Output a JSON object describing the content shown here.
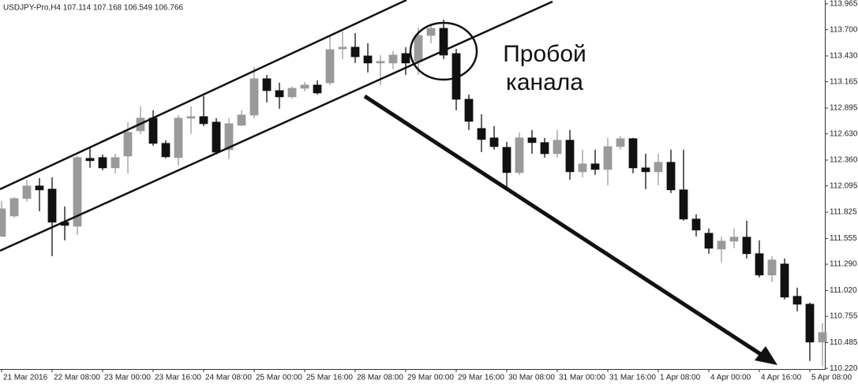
{
  "chart_data": {
    "type": "candlestick",
    "header": "USDJPY-Pro,H4  107.114 107.168 106.549 106.766",
    "annotation": [
      "Пробой",
      "канала"
    ],
    "up_color": "#9a9a9a",
    "down_color": "#111111",
    "categories": [
      "21 Mar 2016",
      null,
      null,
      null,
      "22 Mar 08:00",
      null,
      null,
      null,
      "23 Mar 00:00",
      null,
      null,
      null,
      "23 Mar 16:00",
      null,
      null,
      null,
      "24 Mar 08:00",
      null,
      null,
      null,
      "25 Mar 00:00",
      null,
      null,
      null,
      "25 Mar 16:00",
      null,
      null,
      null,
      "28 Mar 08:00",
      null,
      null,
      null,
      "29 Mar 00:00",
      null,
      null,
      null,
      "29 Mar 16:00",
      null,
      null,
      null,
      "30 Mar 08:00",
      null,
      null,
      null,
      "31 Mar 00:00",
      null,
      null,
      null,
      "31 Mar 16:00",
      null,
      null,
      null,
      "1 Apr 08:00",
      null,
      null,
      null,
      "4 Apr 00:00",
      null,
      null,
      null,
      "4 Apr 16:00",
      null,
      null,
      null,
      "5 Apr 08:00",
      null
    ],
    "open": [
      111.576,
      111.786,
      111.965,
      112.094,
      112.062,
      111.722,
      111.681,
      112.378,
      112.386,
      112.28,
      112.402,
      112.661,
      112.791,
      112.532,
      112.386,
      112.791,
      112.807,
      112.75,
      112.467,
      112.718,
      112.823,
      113.196,
      113.074,
      113.01,
      113.098,
      113.131,
      113.155,
      113.503,
      113.52,
      113.43,
      113.358,
      113.358,
      113.455,
      113.374,
      113.641,
      113.714,
      113.455,
      112.985,
      112.685,
      112.588,
      112.491,
      112.232,
      112.588,
      112.54,
      112.426,
      112.564,
      112.24,
      112.321,
      112.264,
      112.499,
      112.58,
      112.28,
      112.24,
      112.337,
      112.054,
      111.754,
      111.608,
      111.446,
      111.527,
      111.568,
      111.398,
      111.179,
      111.292,
      110.96,
      110.879,
      110.49
    ],
    "high": [
      111.94,
      111.981,
      112.159,
      112.175,
      112.183,
      111.884,
      112.402,
      112.483,
      112.418,
      112.426,
      112.75,
      112.912,
      112.872,
      112.564,
      112.823,
      112.912,
      113.018,
      112.791,
      112.791,
      112.872,
      113.317,
      113.236,
      113.155,
      113.115,
      113.163,
      113.179,
      113.641,
      113.682,
      113.665,
      113.56,
      113.439,
      113.479,
      113.52,
      113.722,
      113.763,
      113.803,
      113.503,
      113.034,
      112.831,
      112.71,
      112.548,
      112.645,
      112.669,
      112.588,
      112.669,
      112.669,
      112.467,
      112.467,
      112.588,
      112.604,
      112.588,
      112.426,
      112.426,
      112.467,
      112.467,
      111.803,
      111.657,
      111.576,
      111.657,
      111.738,
      111.535,
      111.373,
      111.349,
      111.049,
      110.896,
      110.685
    ],
    "low": [
      111.576,
      111.77,
      111.932,
      111.835,
      111.373,
      111.535,
      111.592,
      112.28,
      112.256,
      112.224,
      112.224,
      112.629,
      112.507,
      112.378,
      112.305,
      112.629,
      112.71,
      112.418,
      112.37,
      112.71,
      112.791,
      112.953,
      112.888,
      112.993,
      113.066,
      113.034,
      113.131,
      113.398,
      113.358,
      113.26,
      113.131,
      113.293,
      113.236,
      113.236,
      113.56,
      113.398,
      112.872,
      112.669,
      112.442,
      112.467,
      112.062,
      112.208,
      112.426,
      112.386,
      112.386,
      112.159,
      112.183,
      112.208,
      112.102,
      112.467,
      112.224,
      112.062,
      112.102,
      112.021,
      111.738,
      111.576,
      111.398,
      111.309,
      111.454,
      111.349,
      111.155,
      111.106,
      110.928,
      110.806,
      110.296,
      110.239
    ],
    "close": [
      111.859,
      111.965,
      112.094,
      112.054,
      111.722,
      111.689,
      112.386,
      112.354,
      112.28,
      112.386,
      112.645,
      112.791,
      112.532,
      112.394,
      112.791,
      112.807,
      112.734,
      112.442,
      112.734,
      112.823,
      113.196,
      113.074,
      113.01,
      113.098,
      113.131,
      113.05,
      113.495,
      113.52,
      113.422,
      113.358,
      113.374,
      113.439,
      113.358,
      113.641,
      113.714,
      113.439,
      112.985,
      112.758,
      112.572,
      112.499,
      112.232,
      112.588,
      112.54,
      112.426,
      112.564,
      112.24,
      112.321,
      112.264,
      112.499,
      112.58,
      112.28,
      112.24,
      112.337,
      112.054,
      111.754,
      111.641,
      111.454,
      111.527,
      111.568,
      111.398,
      111.179,
      111.333,
      110.952,
      110.879,
      110.49,
      110.588
    ],
    "ylim": [
      110.213,
      114.005
    ],
    "yticks": [
      113.965,
      {
        "value": 113.7,
        "label": "113.700"
      },
      {
        "value": 113.43,
        "label": "113.430"
      },
      113.165,
      112.895,
      {
        "value": 112.63,
        "label": "112.630"
      },
      {
        "value": 112.36,
        "label": "112.360"
      },
      112.095,
      111.825,
      111.555,
      {
        "value": 111.29,
        "label": "111.290"
      },
      {
        "value": 111.02,
        "label": "111.020"
      },
      110.755,
      110.485,
      {
        "value": 110.22,
        "label": "110.220"
      }
    ]
  }
}
